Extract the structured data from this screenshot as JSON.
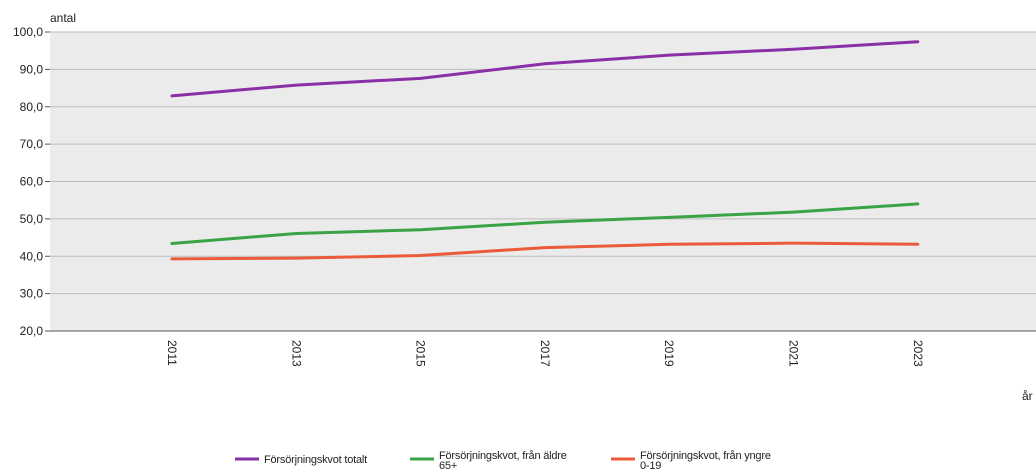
{
  "chart_data": {
    "type": "line",
    "title": "",
    "ylabel": "antal",
    "xlabel": "år",
    "ylim": [
      20,
      100
    ],
    "yticks": [
      "20,0",
      "30,0",
      "40,0",
      "50,0",
      "60,0",
      "70,0",
      "80,0",
      "90,0",
      "100,0"
    ],
    "grid": true,
    "legend_position": "bottom",
    "x": [
      2011,
      2013,
      2015,
      2017,
      2019,
      2021,
      2023
    ],
    "xtick_labels": [
      "2011",
      "2013",
      "2015",
      "2017",
      "2019",
      "2021",
      "2023"
    ],
    "series": [
      {
        "name": "Försörjningskvot totalt",
        "color": "#8b2fa6",
        "values": [
          82.9,
          85.8,
          87.6,
          91.5,
          93.8,
          95.4,
          97.4
        ]
      },
      {
        "name": "Försörjningskvot, från äldre 65+",
        "legend_lines": [
          "Försörjningskvot, från äldre",
          "65+"
        ],
        "color": "#3aa346",
        "values": [
          43.4,
          46.1,
          47.1,
          49.1,
          50.4,
          51.8,
          54.0
        ]
      },
      {
        "name": "Försörjningskvot, från yngre 0-19",
        "legend_lines": [
          "Försörjningskvot, från yngre",
          "0-19"
        ],
        "color": "#ea5b3a",
        "values": [
          39.3,
          39.5,
          40.2,
          42.3,
          43.2,
          43.5,
          43.2
        ]
      }
    ]
  }
}
